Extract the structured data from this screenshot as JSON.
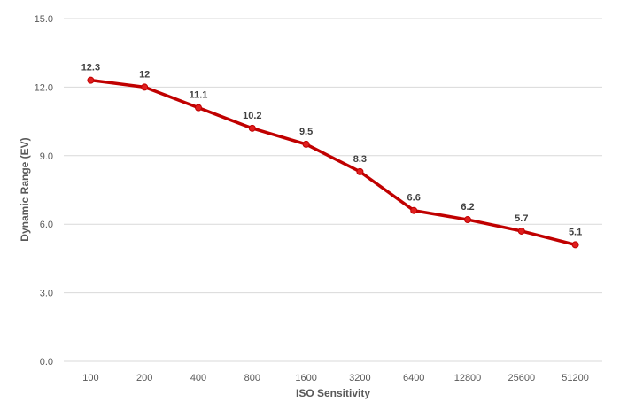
{
  "chart_data": {
    "type": "line",
    "title": "",
    "xlabel": "ISO Sensitivity",
    "ylabel": "Dynamic Range (EV)",
    "categories": [
      "100",
      "200",
      "400",
      "800",
      "1600",
      "3200",
      "6400",
      "12800",
      "25600",
      "51200"
    ],
    "series": [
      {
        "values": [
          12.3,
          12,
          11.1,
          10.2,
          9.5,
          8.3,
          6.6,
          6.2,
          5.7,
          5.1
        ],
        "data_labels": [
          "12.3",
          "12",
          "11.1",
          "10.2",
          "9.5",
          "8.3",
          "6.6",
          "6.2",
          "5.7",
          "5.1"
        ],
        "color": "#c00000"
      }
    ],
    "ylim": [
      0,
      15
    ],
    "yticks": [
      0,
      3,
      6,
      9,
      12,
      15
    ],
    "ytick_labels": [
      "0.0",
      "3.0",
      "6.0",
      "9.0",
      "12.0",
      "15.0"
    ],
    "grid": true,
    "legend": "none"
  }
}
